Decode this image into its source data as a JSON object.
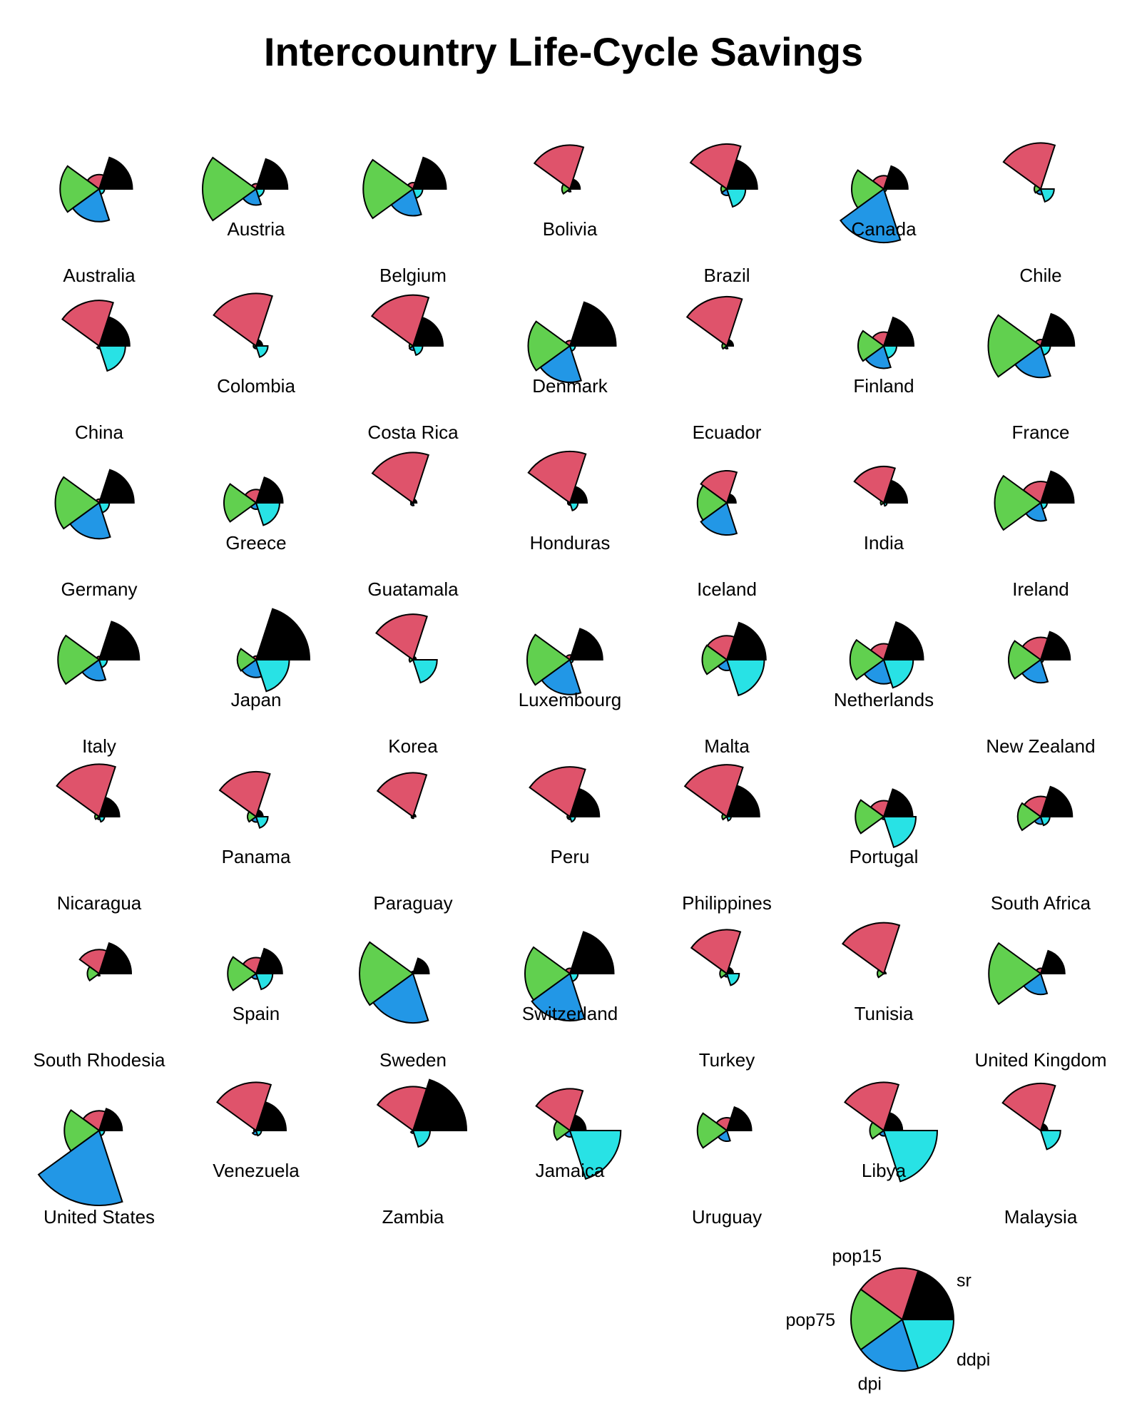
{
  "chart_data": {
    "type": "segment-star",
    "title": "Intercountry Life-Cycle Savings",
    "variables": [
      "sr",
      "pop15",
      "pop75",
      "dpi",
      "ddpi"
    ],
    "colors": {
      "sr": "#000000",
      "pop15": "#DF536B",
      "pop75": "#61D04F",
      "dpi": "#2297E6",
      "ddpi": "#28E2E5"
    },
    "key": {
      "sr": "sr",
      "pop15": "pop15",
      "pop75": "pop75",
      "dpi": "dpi",
      "ddpi": "ddpi"
    },
    "countries": [
      {
        "name": "Australia",
        "sr": 0.62,
        "pop15": 0.27,
        "pop75": 0.73,
        "dpi": 0.61,
        "ddpi": 0.1
      },
      {
        "name": "Austria",
        "sr": 0.59,
        "pop15": 0.1,
        "pop75": 1.0,
        "dpi": 0.3,
        "ddpi": 0.15
      },
      {
        "name": "Belgium",
        "sr": 0.62,
        "pop15": 0.12,
        "pop75": 0.93,
        "dpi": 0.5,
        "ddpi": 0.18
      },
      {
        "name": "Bolivia",
        "sr": 0.19,
        "pop15": 0.82,
        "pop75": 0.15,
        "dpi": 0.05,
        "ddpi": 0.0
      },
      {
        "name": "Brazil",
        "sr": 0.57,
        "pop15": 0.84,
        "pop75": 0.11,
        "dpi": 0.12,
        "ddpi": 0.35
      },
      {
        "name": "Canada",
        "sr": 0.45,
        "pop15": 0.25,
        "pop75": 0.6,
        "dpi": 1.0,
        "ddpi": 0.05
      },
      {
        "name": "Chile",
        "sr": 0.0,
        "pop15": 0.86,
        "pop75": 0.12,
        "dpi": 0.1,
        "ddpi": 0.25
      },
      {
        "name": "China",
        "sr": 0.57,
        "pop15": 0.85,
        "pop75": 0.0,
        "dpi": 0.05,
        "ddpi": 0.49
      },
      {
        "name": "Colombia",
        "sr": 0.12,
        "pop15": 0.98,
        "pop75": 0.05,
        "dpi": 0.05,
        "ddpi": 0.22
      },
      {
        "name": "Costa Rica",
        "sr": 0.56,
        "pop15": 0.95,
        "pop75": 0.07,
        "dpi": 0.08,
        "ddpi": 0.18
      },
      {
        "name": "Denmark",
        "sr": 0.86,
        "pop15": 0.1,
        "pop75": 0.78,
        "dpi": 0.68,
        "ddpi": 0.1
      },
      {
        "name": "Ecuador",
        "sr": 0.12,
        "pop15": 0.92,
        "pop75": 0.09,
        "dpi": 0.05,
        "ddpi": 0.0
      },
      {
        "name": "Finland",
        "sr": 0.56,
        "pop15": 0.26,
        "pop75": 0.48,
        "dpi": 0.42,
        "ddpi": 0.24
      },
      {
        "name": "France",
        "sr": 0.63,
        "pop15": 0.12,
        "pop75": 0.98,
        "dpi": 0.59,
        "ddpi": 0.18
      },
      {
        "name": "Germany",
        "sr": 0.65,
        "pop15": 0.07,
        "pop75": 0.82,
        "dpi": 0.67,
        "ddpi": 0.19
      },
      {
        "name": "Greece",
        "sr": 0.5,
        "pop15": 0.25,
        "pop75": 0.6,
        "dpi": 0.12,
        "ddpi": 0.44
      },
      {
        "name": "Guatamala",
        "sr": 0.07,
        "pop15": 0.94,
        "pop75": 0.04,
        "dpi": 0.05,
        "ddpi": 0.0
      },
      {
        "name": "Honduras",
        "sr": 0.32,
        "pop15": 0.96,
        "pop75": 0.04,
        "dpi": 0.04,
        "ddpi": 0.15
      },
      {
        "name": "Iceland",
        "sr": 0.17,
        "pop15": 0.6,
        "pop75": 0.55,
        "dpi": 0.6,
        "ddpi": 0.0
      },
      {
        "name": "India",
        "sr": 0.44,
        "pop15": 0.68,
        "pop75": 0.06,
        "dpi": 0.0,
        "ddpi": 0.06
      },
      {
        "name": "Ireland",
        "sr": 0.62,
        "pop15": 0.4,
        "pop75": 0.86,
        "dpi": 0.34,
        "ddpi": 0.12
      },
      {
        "name": "Italy",
        "sr": 0.75,
        "pop15": 0.06,
        "pop75": 0.77,
        "dpi": 0.39,
        "ddpi": 0.15
      },
      {
        "name": "Japan",
        "sr": 1.0,
        "pop15": 0.07,
        "pop75": 0.35,
        "dpi": 0.33,
        "ddpi": 0.62
      },
      {
        "name": "Korea",
        "sr": 0.06,
        "pop15": 0.85,
        "pop75": 0.07,
        "dpi": 0.0,
        "ddpi": 0.45
      },
      {
        "name": "Luxembourg",
        "sr": 0.61,
        "pop15": 0.09,
        "pop75": 0.8,
        "dpi": 0.65,
        "ddpi": 0.06
      },
      {
        "name": "Malta",
        "sr": 0.73,
        "pop15": 0.45,
        "pop75": 0.46,
        "dpi": 0.2,
        "ddpi": 0.7
      },
      {
        "name": "Netherlands",
        "sr": 0.74,
        "pop15": 0.3,
        "pop75": 0.63,
        "dpi": 0.45,
        "ddpi": 0.55
      },
      {
        "name": "New Zealand",
        "sr": 0.55,
        "pop15": 0.42,
        "pop75": 0.6,
        "dpi": 0.43,
        "ddpi": 0.05
      },
      {
        "name": "Nicaragua",
        "sr": 0.38,
        "pop15": 0.98,
        "pop75": 0.08,
        "dpi": 0.05,
        "ddpi": 0.1
      },
      {
        "name": "Panama",
        "sr": 0.13,
        "pop15": 0.84,
        "pop75": 0.16,
        "dpi": 0.1,
        "ddpi": 0.22
      },
      {
        "name": "Paraguay",
        "sr": 0.05,
        "pop15": 0.82,
        "pop75": 0.03,
        "dpi": 0.03,
        "ddpi": 0.0
      },
      {
        "name": "Peru",
        "sr": 0.55,
        "pop15": 0.93,
        "pop75": 0.05,
        "dpi": 0.05,
        "ddpi": 0.1
      },
      {
        "name": "Philippines",
        "sr": 0.61,
        "pop15": 0.97,
        "pop75": 0.09,
        "dpi": 0.0,
        "ddpi": 0.08
      },
      {
        "name": "Portugal",
        "sr": 0.54,
        "pop15": 0.3,
        "pop75": 0.53,
        "dpi": 0.05,
        "ddpi": 0.6
      },
      {
        "name": "South Africa",
        "sr": 0.59,
        "pop15": 0.38,
        "pop75": 0.43,
        "dpi": 0.14,
        "ddpi": 0.17
      },
      {
        "name": "South Rhodesia",
        "sr": 0.6,
        "pop15": 0.45,
        "pop75": 0.22,
        "dpi": 0.04,
        "ddpi": 0.0
      },
      {
        "name": "Spain",
        "sr": 0.49,
        "pop15": 0.3,
        "pop75": 0.53,
        "dpi": 0.1,
        "ddpi": 0.31
      },
      {
        "name": "Sweden",
        "sr": 0.3,
        "pop15": 0.04,
        "pop75": 1.0,
        "dpi": 0.92,
        "ddpi": 0.0
      },
      {
        "name": "Switzerland",
        "sr": 0.82,
        "pop15": 0.1,
        "pop75": 0.84,
        "dpi": 0.88,
        "ddpi": 0.15
      },
      {
        "name": "Turkey",
        "sr": 0.12,
        "pop15": 0.82,
        "pop75": 0.13,
        "dpi": 0.06,
        "ddpi": 0.23
      },
      {
        "name": "Tunisia",
        "sr": 0.04,
        "pop15": 0.95,
        "pop75": 0.12,
        "dpi": 0.0,
        "ddpi": 0.0
      },
      {
        "name": "United Kingdom",
        "sr": 0.45,
        "pop15": 0.1,
        "pop75": 0.97,
        "dpi": 0.39,
        "ddpi": 0.0
      },
      {
        "name": "United States",
        "sr": 0.43,
        "pop15": 0.37,
        "pop75": 0.65,
        "dpi": 1.4,
        "ddpi": 0.1
      },
      {
        "name": "Venezuela",
        "sr": 0.56,
        "pop15": 0.9,
        "pop75": 0.04,
        "dpi": 0.08,
        "ddpi": 0.1
      },
      {
        "name": "Zambia",
        "sr": 1.0,
        "pop15": 0.82,
        "pop75": 0.0,
        "dpi": 0.05,
        "ddpi": 0.32
      },
      {
        "name": "Jamaica",
        "sr": 0.3,
        "pop15": 0.78,
        "pop75": 0.3,
        "dpi": 0.12,
        "ddpi": 0.95
      },
      {
        "name": "Uruguay",
        "sr": 0.46,
        "pop15": 0.24,
        "pop75": 0.55,
        "dpi": 0.2,
        "ddpi": 0.0
      },
      {
        "name": "Libya",
        "sr": 0.35,
        "pop15": 0.9,
        "pop75": 0.26,
        "dpi": 0.1,
        "ddpi": 1.0
      },
      {
        "name": "Malaysia",
        "sr": 0.13,
        "pop15": 0.88,
        "pop75": 0.0,
        "dpi": 0.0,
        "ddpi": 0.37
      }
    ]
  }
}
